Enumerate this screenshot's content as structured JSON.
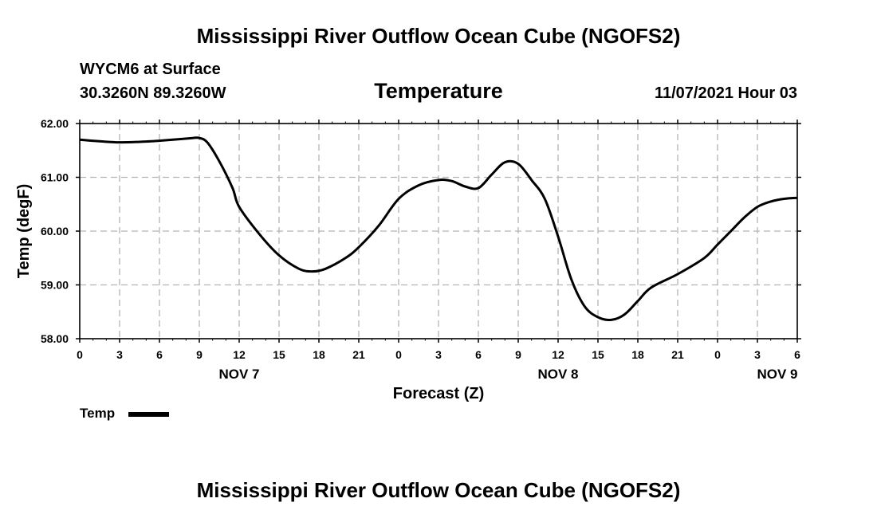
{
  "page": {
    "main_title": "Mississippi River Outflow Ocean Cube (NGOFS2)",
    "station_line1": "WYCM6 at Surface",
    "station_line2": "30.3260N  89.3260W",
    "issued": "11/07/2021 Hour 03",
    "footer_title": "Mississippi River Outflow Ocean Cube (NGOFS2)"
  },
  "chart_data": {
    "type": "line",
    "title": "Temperature",
    "xlabel": "Forecast (Z)",
    "ylabel": "Temp (degF)",
    "ylim": [
      58.0,
      62.0
    ],
    "yticks": [
      "58.00",
      "59.00",
      "60.00",
      "61.00",
      "62.00"
    ],
    "xlim": [
      0,
      54
    ],
    "xtick_labels": [
      "0",
      "3",
      "6",
      "9",
      "12",
      "15",
      "18",
      "21",
      "0",
      "3",
      "6",
      "9",
      "12",
      "15",
      "18",
      "21",
      "0",
      "3",
      "6"
    ],
    "date_labels": [
      {
        "label": "NOV 7",
        "hour": 12
      },
      {
        "label": "NOV 8",
        "hour": 36
      },
      {
        "label": "NOV 9",
        "hour": 52.5
      }
    ],
    "grid": true,
    "series": [
      {
        "name": "Temp",
        "x": [
          0,
          1.5,
          3,
          4.5,
          6,
          7.5,
          8.5,
          9,
          9.6,
          10.5,
          11.5,
          12,
          13.5,
          15,
          16.5,
          17.5,
          18.5,
          20,
          21,
          22.5,
          24,
          25.5,
          27,
          28,
          29,
          30,
          31,
          32,
          33,
          34,
          35,
          36,
          37,
          38,
          39,
          40,
          41,
          42,
          43,
          45,
          47,
          48,
          49,
          50,
          51,
          52,
          53,
          54
        ],
        "values": [
          61.7,
          61.67,
          61.65,
          61.66,
          61.68,
          61.71,
          61.73,
          61.73,
          61.65,
          61.3,
          60.8,
          60.45,
          59.95,
          59.55,
          59.3,
          59.25,
          59.3,
          59.5,
          59.7,
          60.1,
          60.6,
          60.85,
          60.95,
          60.93,
          60.83,
          60.8,
          61.05,
          61.28,
          61.25,
          60.95,
          60.6,
          59.9,
          59.1,
          58.6,
          58.4,
          58.35,
          58.45,
          58.7,
          58.95,
          59.2,
          59.5,
          59.75,
          60.0,
          60.25,
          60.45,
          60.55,
          60.6,
          60.62
        ]
      }
    ],
    "legend": [
      {
        "label": "Temp",
        "color": "#000000"
      }
    ],
    "legend_position": "bottom-left"
  }
}
